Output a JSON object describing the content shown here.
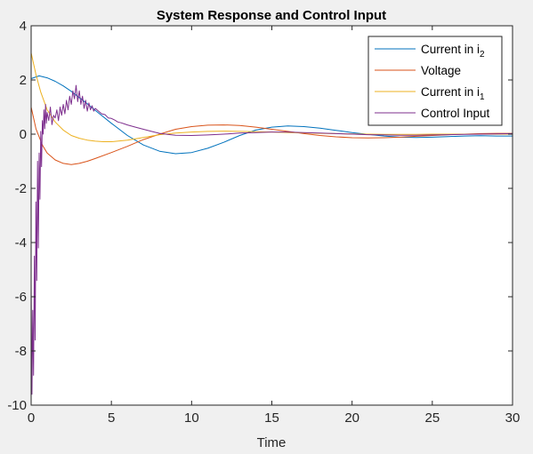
{
  "chart_data": {
    "type": "line",
    "title": "System Response and Control Input",
    "xlabel": "Time",
    "ylabel": "",
    "xlim": [
      0,
      30
    ],
    "ylim": [
      -10,
      4
    ],
    "xticks": [
      "0",
      "5",
      "10",
      "15",
      "20",
      "25",
      "30"
    ],
    "yticks": [
      "-10",
      "-8",
      "-6",
      "-4",
      "-2",
      "0",
      "2",
      "4"
    ],
    "grid": false,
    "legend_position": "top-right",
    "series": [
      {
        "name": "Current in i",
        "name_subscript": "2",
        "color": "#0072BD",
        "x": [
          0,
          0.5,
          1,
          1.5,
          2,
          2.5,
          3,
          3.5,
          4,
          5,
          6,
          7,
          8,
          9,
          10,
          11,
          12,
          13,
          14,
          15,
          16,
          17,
          18,
          19,
          20,
          21,
          22,
          23,
          24,
          25,
          26,
          27,
          28,
          29,
          30
        ],
        "y": [
          2.05,
          2.15,
          2.08,
          1.95,
          1.78,
          1.58,
          1.35,
          1.12,
          0.88,
          0.4,
          -0.05,
          -0.4,
          -0.63,
          -0.72,
          -0.68,
          -0.52,
          -0.3,
          -0.05,
          0.15,
          0.26,
          0.3,
          0.28,
          0.22,
          0.14,
          0.06,
          -0.01,
          -0.07,
          -0.11,
          -0.12,
          -0.11,
          -0.09,
          -0.07,
          -0.06,
          -0.07,
          -0.07
        ]
      },
      {
        "name": "Voltage",
        "color": "#D95319",
        "x": [
          0,
          0.3,
          0.7,
          1,
          1.5,
          2,
          2.5,
          3,
          3.5,
          4,
          5,
          6,
          7,
          8,
          9,
          10,
          11,
          12,
          13,
          14,
          15,
          16,
          17,
          18,
          19,
          20,
          21,
          22,
          23,
          24,
          25,
          26,
          27,
          28,
          29,
          30
        ],
        "y": [
          1.0,
          0.2,
          -0.4,
          -0.7,
          -0.95,
          -1.08,
          -1.12,
          -1.08,
          -1.0,
          -0.9,
          -0.68,
          -0.45,
          -0.2,
          0.0,
          0.18,
          0.28,
          0.33,
          0.34,
          0.32,
          0.26,
          0.18,
          0.1,
          0.02,
          -0.05,
          -0.1,
          -0.13,
          -0.14,
          -0.13,
          -0.11,
          -0.08,
          -0.05,
          -0.02,
          0.0,
          0.02,
          0.03,
          0.03
        ]
      },
      {
        "name": "Current in i",
        "name_subscript": "1",
        "color": "#EDB120",
        "x": [
          0,
          0.3,
          0.6,
          1,
          1.5,
          2,
          2.5,
          3,
          3.5,
          4,
          4.5,
          5,
          6,
          7,
          8,
          9,
          10,
          11,
          12,
          13,
          14,
          15,
          16,
          17,
          18,
          19,
          20,
          21,
          22,
          23,
          24,
          25,
          26,
          27,
          28,
          29,
          30
        ],
        "y": [
          3.0,
          2.2,
          1.55,
          0.9,
          0.45,
          0.15,
          -0.05,
          -0.15,
          -0.22,
          -0.26,
          -0.28,
          -0.28,
          -0.22,
          -0.12,
          -0.02,
          0.04,
          0.08,
          0.1,
          0.11,
          0.1,
          0.09,
          0.08,
          0.06,
          0.05,
          0.03,
          0.02,
          0.01,
          0.0,
          -0.01,
          -0.01,
          -0.01,
          0.0,
          0.0,
          0.0,
          0.0,
          0.0,
          0.0
        ]
      },
      {
        "name": "Control Input",
        "color": "#7E2F8E",
        "x": [
          0,
          0.05,
          0.1,
          0.15,
          0.2,
          0.25,
          0.3,
          0.35,
          0.4,
          0.45,
          0.5,
          0.55,
          0.6,
          0.65,
          0.7,
          0.75,
          0.8,
          0.85,
          0.9,
          0.95,
          1.0,
          1.1,
          1.2,
          1.3,
          1.4,
          1.5,
          1.6,
          1.7,
          1.8,
          1.9,
          2.0,
          2.1,
          2.2,
          2.3,
          2.4,
          2.5,
          2.6,
          2.7,
          2.8,
          2.9,
          3.0,
          3.1,
          3.2,
          3.3,
          3.4,
          3.5,
          3.6,
          3.7,
          3.8,
          3.9,
          4.0,
          4.2,
          4.4,
          4.6,
          4.8,
          5.0,
          5.2,
          5.4,
          5.6,
          5.8,
          6.0,
          6.5,
          7,
          7.5,
          8,
          8.5,
          9,
          10,
          11,
          12,
          13,
          14,
          15,
          16,
          17,
          18,
          19,
          20,
          21,
          22,
          23,
          24,
          25,
          26,
          27,
          28,
          29,
          30
        ],
        "y": [
          -5.5,
          -9.6,
          -6.5,
          -8.9,
          -4.5,
          -7.6,
          -2.5,
          -5.4,
          -1.0,
          -4.2,
          -0.7,
          -2.4,
          0.1,
          -1.2,
          0.5,
          0.0,
          0.9,
          0.2,
          1.1,
          0.4,
          0.8,
          0.5,
          1.0,
          0.35,
          0.7,
          0.6,
          0.9,
          0.5,
          1.0,
          0.7,
          1.1,
          0.75,
          1.25,
          0.9,
          1.4,
          1.1,
          1.6,
          1.3,
          1.8,
          1.2,
          1.6,
          1.1,
          1.4,
          0.95,
          1.25,
          0.85,
          1.15,
          0.9,
          1.05,
          0.85,
          0.95,
          0.85,
          0.75,
          0.72,
          0.6,
          0.58,
          0.52,
          0.45,
          0.42,
          0.38,
          0.34,
          0.26,
          0.18,
          0.1,
          0.03,
          -0.01,
          -0.04,
          -0.05,
          -0.03,
          0.0,
          0.04,
          0.06,
          0.08,
          0.08,
          0.06,
          0.04,
          0.02,
          0.0,
          -0.02,
          -0.03,
          -0.04,
          -0.04,
          -0.03,
          -0.02,
          -0.01,
          0.0,
          0.01,
          0.02
        ]
      }
    ]
  }
}
